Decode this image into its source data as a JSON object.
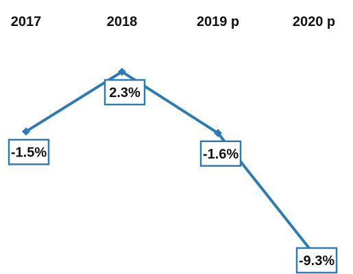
{
  "chart_data": {
    "type": "line",
    "categories": [
      "2017",
      "2018",
      "2019 p",
      "2020 p"
    ],
    "series": [
      {
        "values": [
          -1.5,
          2.3,
          -1.6,
          -9.3
        ],
        "labels": [
          "-1.5%",
          "2.3%",
          "-1.6%",
          "-9.3%"
        ]
      }
    ],
    "unit": "%",
    "ylim": [
      -9.3,
      2.3
    ],
    "grid": false,
    "legend": "none",
    "colors": {
      "line": "#2e7bb4",
      "box_border": "#2e7bb4",
      "text": "#111111"
    }
  }
}
